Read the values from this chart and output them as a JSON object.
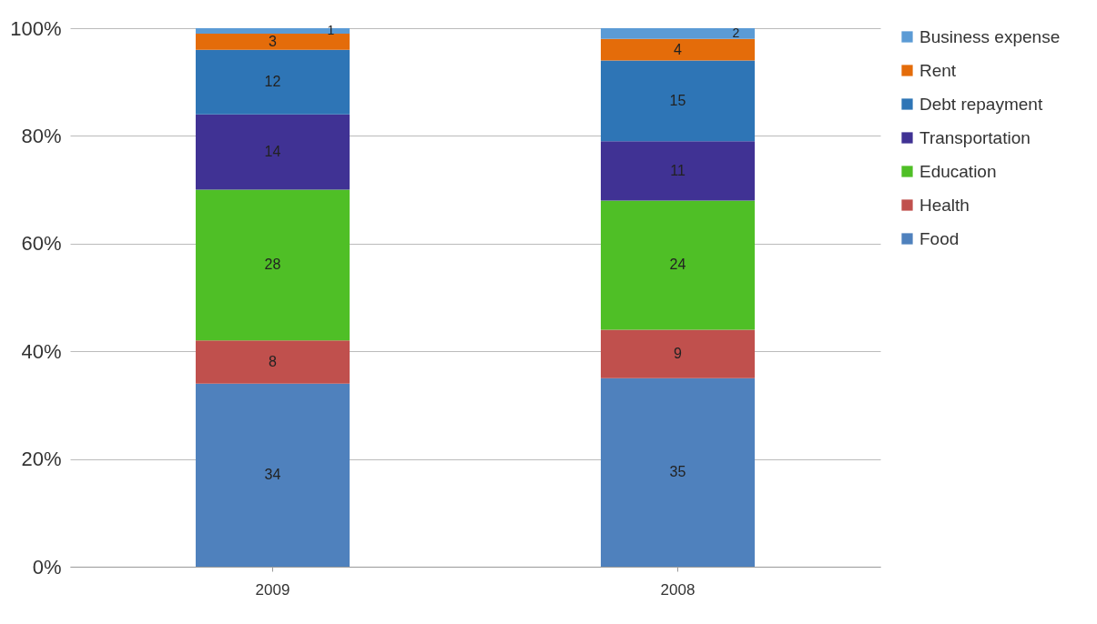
{
  "chart_data": {
    "type": "bar",
    "stacked": true,
    "categories": [
      "2009",
      "2008"
    ],
    "series": [
      {
        "name": "Food",
        "color": "#4f81bd",
        "values": [
          34,
          35
        ]
      },
      {
        "name": "Health",
        "color": "#c0504d",
        "values": [
          8,
          9
        ]
      },
      {
        "name": "Education",
        "color": "#4fbf26",
        "values": [
          28,
          24
        ]
      },
      {
        "name": "Transportation",
        "color": "#403294",
        "values": [
          14,
          11
        ]
      },
      {
        "name": "Debt  repayment",
        "color": "#2e75b6",
        "values": [
          12,
          15
        ]
      },
      {
        "name": "Rent",
        "color": "#e46c0a",
        "values": [
          3,
          4
        ]
      },
      {
        "name": "Business expense",
        "color": "#5b9bd5",
        "values": [
          1,
          2
        ]
      }
    ],
    "ylim": [
      0,
      100
    ],
    "yticks": [
      {
        "value": 0,
        "label": "0%"
      },
      {
        "value": 20,
        "label": "20%"
      },
      {
        "value": 40,
        "label": "40%"
      },
      {
        "value": 60,
        "label": "60%"
      },
      {
        "value": 80,
        "label": "80%"
      },
      {
        "value": 100,
        "label": "100%"
      }
    ],
    "grid": "y",
    "legend": "right",
    "data_labels": true
  }
}
